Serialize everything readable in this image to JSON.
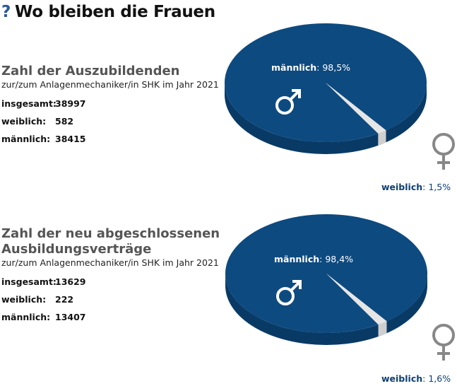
{
  "title": {
    "mark": "?",
    "text": "Wo bleiben die Frauen"
  },
  "colors": {
    "male": "#0d4a80",
    "male_side": "#093a66",
    "female": "#e6e6e6",
    "symbol_female": "#888888",
    "label_female": "#0d3f73"
  },
  "chart_data": [
    {
      "type": "pie",
      "title": "Zahl der Auszubildenden",
      "subtitle": "zur/zum Anlagenmechaniker/in SHK im Jahr 2021",
      "stats": [
        {
          "label": "insgesamt:",
          "value": "38997"
        },
        {
          "label": "weiblich:",
          "value": "582"
        },
        {
          "label": "männlich:",
          "value": "38415"
        }
      ],
      "slices": [
        {
          "name": "männlich",
          "label": "männlich",
          "pct_text": ": 98,5%",
          "value": 98.5
        },
        {
          "name": "weiblich",
          "label": "weiblich",
          "pct_text": ": 1,5%",
          "value": 1.5
        }
      ]
    },
    {
      "type": "pie",
      "title": "Zahl der neu abgeschlossenen Ausbildungsverträge",
      "subtitle": "zur/zum Anlagenmechaniker/in SHK im Jahr 2021",
      "stats": [
        {
          "label": "insgesamt:",
          "value": "13629"
        },
        {
          "label": "weiblich:",
          "value": "222"
        },
        {
          "label": "männlich:",
          "value": "13407"
        }
      ],
      "slices": [
        {
          "name": "männlich",
          "label": "männlich",
          "pct_text": ": 98,4%",
          "value": 98.4
        },
        {
          "name": "weiblich",
          "label": "weiblich",
          "pct_text": ": 1,6%",
          "value": 1.6
        }
      ]
    }
  ]
}
